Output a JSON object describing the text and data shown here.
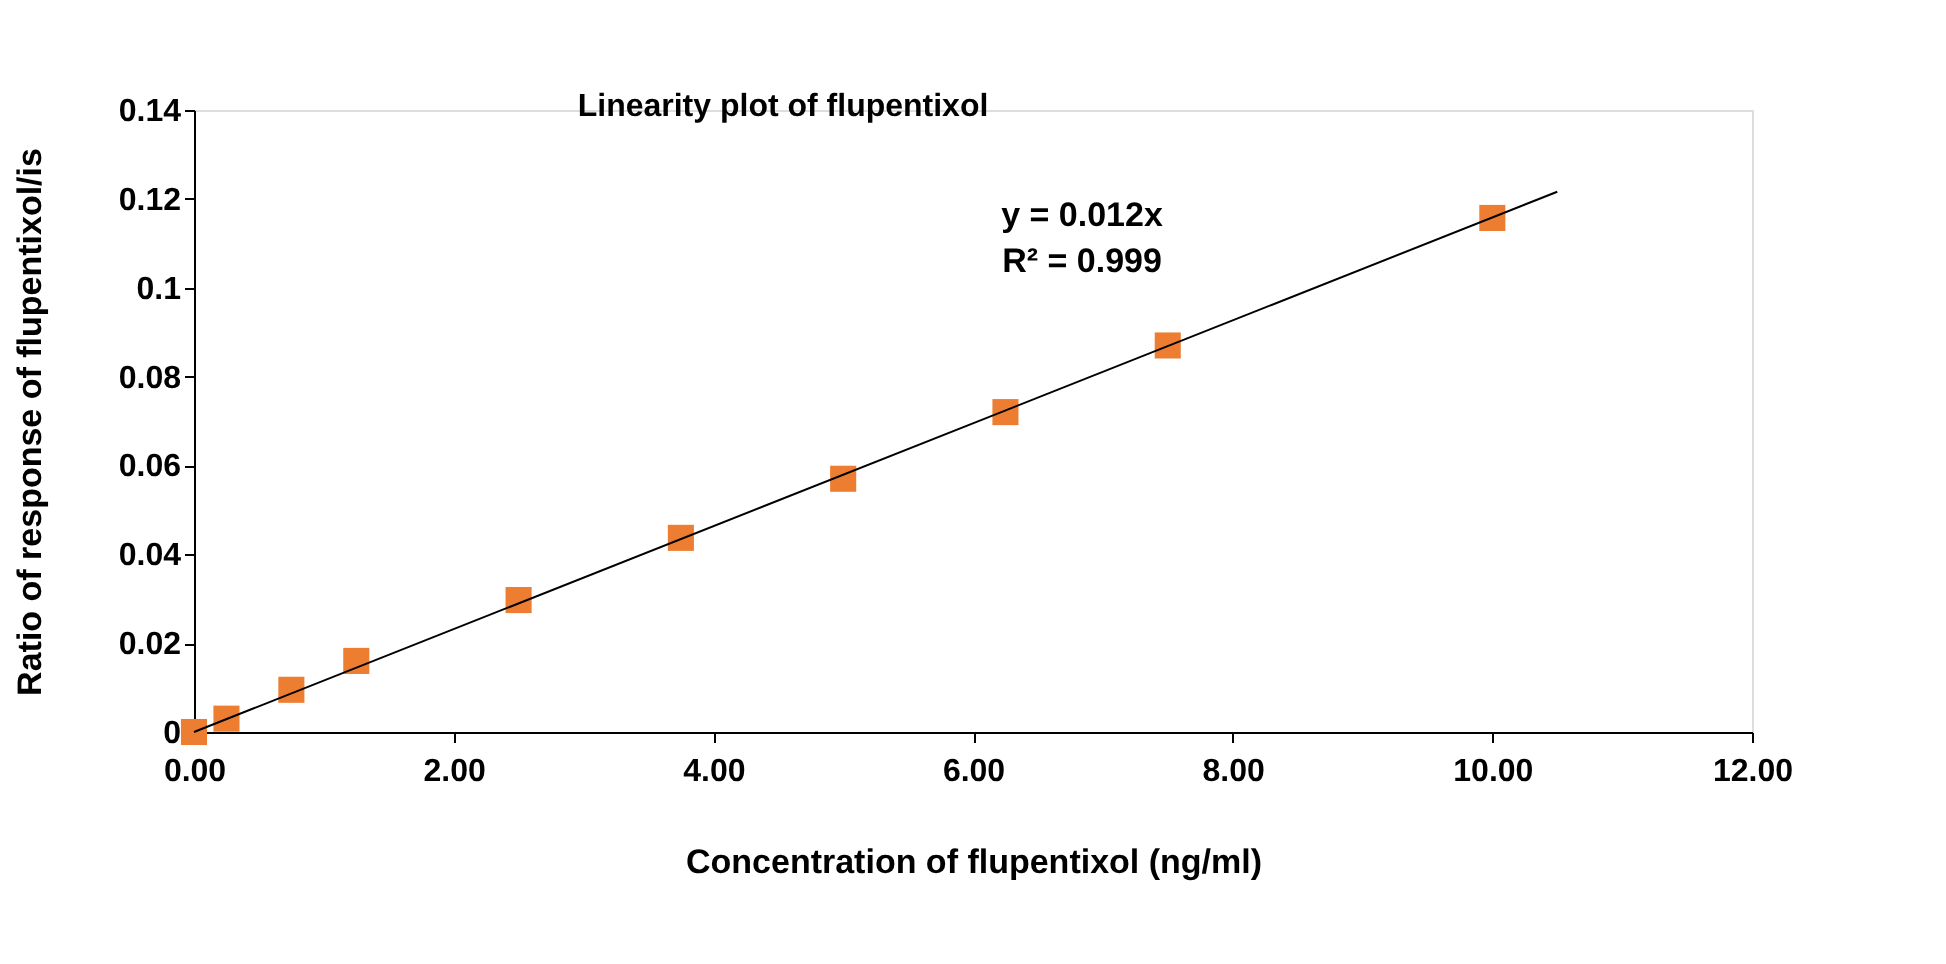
{
  "chart_data": {
    "type": "scatter",
    "title": "Linearity plot of flupentixol",
    "xlabel": "Concentration of flupentixol (ng/ml)",
    "ylabel": "Ratio of response of flupentixol/is",
    "annotations": [
      "y = 0.012x",
      "R² = 0.999"
    ],
    "x": [
      0,
      0.25,
      0.75,
      1.25,
      2.5,
      3.75,
      5,
      6.25,
      7.5,
      10
    ],
    "series": [
      {
        "color": "#ed7d31",
        "marker": "square",
        "values": [
          0,
          0.003,
          0.0095,
          0.016,
          0.0297,
          0.0437,
          0.057,
          0.072,
          0.087,
          0.1157
        ]
      },
      {
        "type": "line",
        "color": "#000000",
        "line_style": "solid",
        "x": [
          0,
          10.5
        ],
        "values": [
          0,
          0.1216
        ]
      }
    ],
    "xlim": [
      0,
      12
    ],
    "xticks": [
      {
        "value": 0,
        "label": "0.00"
      },
      {
        "value": 2,
        "label": "2.00"
      },
      {
        "value": 4,
        "label": "4.00"
      },
      {
        "value": 6,
        "label": "6.00"
      },
      {
        "value": 8,
        "label": "8.00"
      },
      {
        "value": 10,
        "label": "10.00"
      },
      {
        "value": 12,
        "label": "12.00"
      }
    ],
    "ylim": [
      0,
      0.14
    ],
    "yticks": [
      0,
      0.02,
      0.04,
      0.06,
      0.08,
      0.1,
      0.12,
      0.14
    ],
    "grid": false
  }
}
